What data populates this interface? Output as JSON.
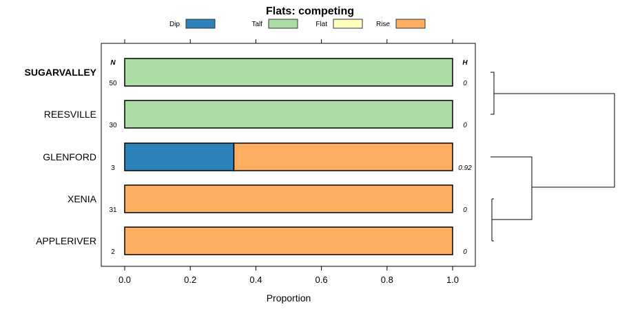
{
  "chart_data": {
    "type": "bar",
    "stacked": true,
    "orientation": "horizontal",
    "title": "Flats: competing",
    "xlabel": "Proportion",
    "xlim": [
      0,
      1
    ],
    "xticks": [
      "0.0",
      "0.2",
      "0.4",
      "0.6",
      "0.8",
      "1.0"
    ],
    "legend_position": "top",
    "series": [
      {
        "name": "Dip",
        "color": "#2b83ba"
      },
      {
        "name": "Talf",
        "color": "#abdda4"
      },
      {
        "name": "Flat",
        "color": "#ffffbf"
      },
      {
        "name": "Rise",
        "color": "#fdae61"
      }
    ],
    "n_header": "N",
    "h_header": "H",
    "rows": [
      {
        "label": "SUGARVALLEY",
        "bold": true,
        "n": "50",
        "h": "0",
        "values": [
          0,
          1,
          0,
          0
        ]
      },
      {
        "label": "REESVILLE",
        "bold": false,
        "n": "30",
        "h": "0",
        "values": [
          0,
          1,
          0,
          0
        ]
      },
      {
        "label": "GLENFORD",
        "bold": false,
        "n": "3",
        "h": "0.92",
        "values": [
          0.333,
          0,
          0,
          0.667
        ]
      },
      {
        "label": "XENIA",
        "bold": false,
        "n": "31",
        "h": "0",
        "values": [
          0,
          0,
          0,
          1
        ]
      },
      {
        "label": "APPLERIVER",
        "bold": false,
        "n": "2",
        "h": "0",
        "values": [
          0,
          0,
          0,
          1
        ]
      }
    ]
  }
}
